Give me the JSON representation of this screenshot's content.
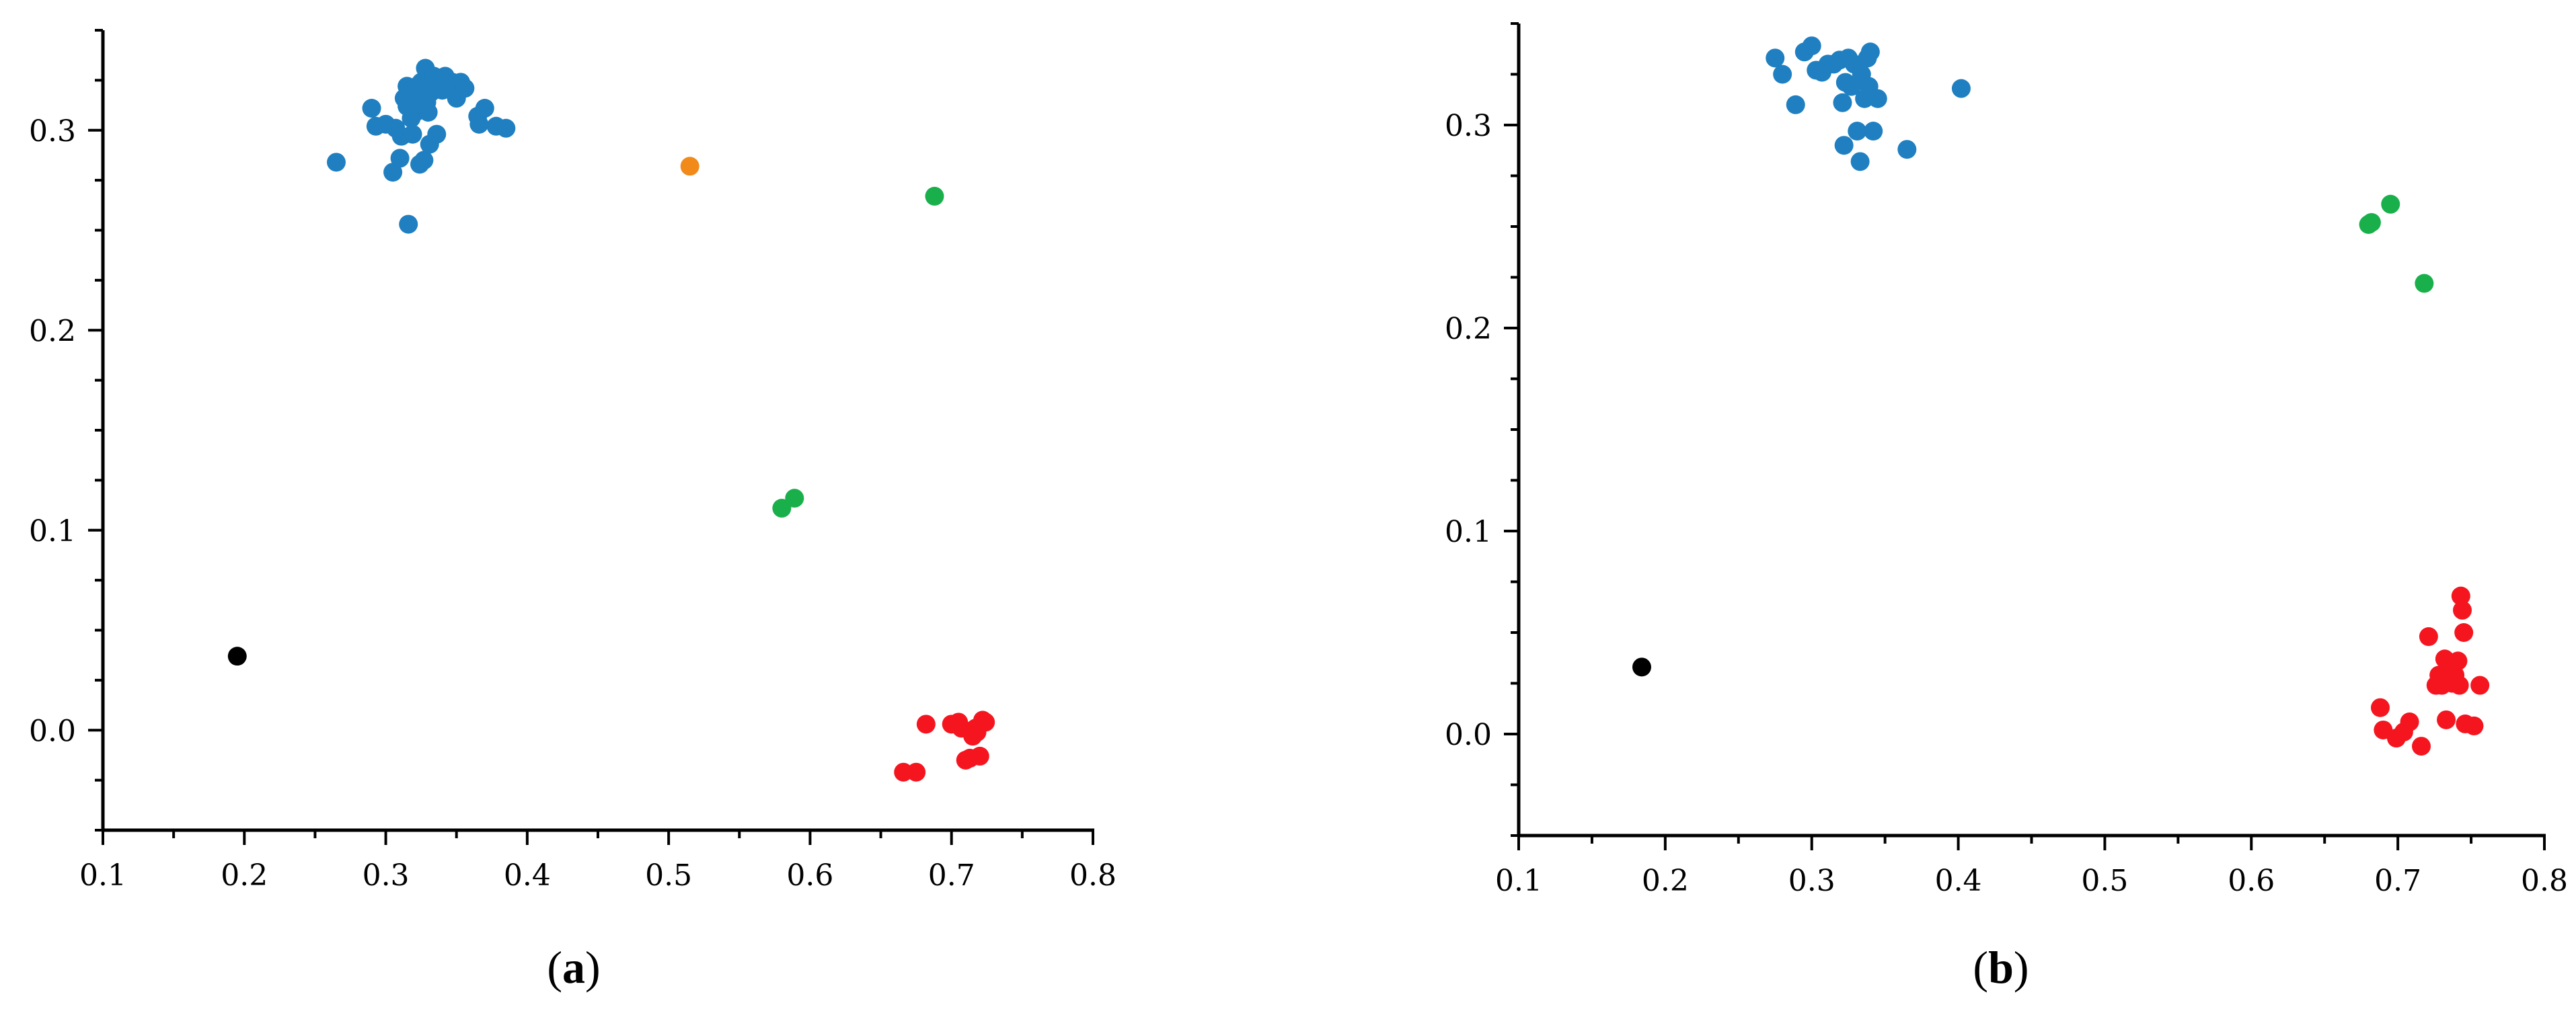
{
  "colors": {
    "blue": "#1f7fc0",
    "orange": "#f28a1a",
    "green": "#19b04b",
    "red": "#f5151f",
    "black": "#000000"
  },
  "chart_data": [
    {
      "type": "scatter",
      "panel_label": "a",
      "xlim": [
        0.1,
        0.8
      ],
      "ylim": [
        -0.05,
        0.35
      ],
      "xticks": [
        0.1,
        0.2,
        0.3,
        0.4,
        0.5,
        0.6,
        0.7,
        0.8
      ],
      "xtick_labels": [
        "0.1",
        "0.2",
        "0.3",
        "0.4",
        "0.5",
        "0.6",
        "0.7",
        "0.8"
      ],
      "yticks": [
        0.0,
        0.1,
        0.2,
        0.3
      ],
      "ytick_labels": [
        "0.0",
        "0.1",
        "0.2",
        "0.3"
      ],
      "grid": false,
      "series": [
        {
          "color": "blue",
          "points": [
            [
              0.265,
              0.284
            ],
            [
              0.29,
              0.311
            ],
            [
              0.293,
              0.302
            ],
            [
              0.3,
              0.303
            ],
            [
              0.305,
              0.279
            ],
            [
              0.307,
              0.301
            ],
            [
              0.31,
              0.286
            ],
            [
              0.311,
              0.297
            ],
            [
              0.313,
              0.316
            ],
            [
              0.315,
              0.312
            ],
            [
              0.316,
              0.253
            ],
            [
              0.318,
              0.306
            ],
            [
              0.32,
              0.32
            ],
            [
              0.321,
              0.309
            ],
            [
              0.323,
              0.316
            ],
            [
              0.324,
              0.283
            ],
            [
              0.325,
              0.324
            ],
            [
              0.327,
              0.285
            ],
            [
              0.328,
              0.331
            ],
            [
              0.329,
              0.314
            ],
            [
              0.33,
              0.309
            ],
            [
              0.331,
              0.293
            ],
            [
              0.332,
              0.319
            ],
            [
              0.334,
              0.327
            ],
            [
              0.336,
              0.298
            ],
            [
              0.34,
              0.32
            ],
            [
              0.342,
              0.327
            ],
            [
              0.347,
              0.324
            ],
            [
              0.35,
              0.316
            ],
            [
              0.353,
              0.324
            ],
            [
              0.356,
              0.321
            ],
            [
              0.365,
              0.307
            ],
            [
              0.366,
              0.303
            ],
            [
              0.37,
              0.311
            ],
            [
              0.378,
              0.302
            ],
            [
              0.385,
              0.301
            ],
            [
              0.315,
              0.322
            ],
            [
              0.322,
              0.322
            ],
            [
              0.326,
              0.313
            ],
            [
              0.319,
              0.298
            ]
          ]
        },
        {
          "color": "orange",
          "points": [
            [
              0.515,
              0.282
            ]
          ]
        },
        {
          "color": "green",
          "points": [
            [
              0.58,
              0.111
            ],
            [
              0.589,
              0.116
            ],
            [
              0.688,
              0.267
            ]
          ]
        },
        {
          "color": "red",
          "points": [
            [
              0.666,
              -0.021
            ],
            [
              0.675,
              -0.021
            ],
            [
              0.682,
              0.003
            ],
            [
              0.7,
              0.003
            ],
            [
              0.705,
              0.004
            ],
            [
              0.707,
              0.001
            ],
            [
              0.71,
              -0.015
            ],
            [
              0.713,
              -0.014
            ],
            [
              0.715,
              -0.003
            ],
            [
              0.718,
              -0.001
            ],
            [
              0.72,
              -0.013
            ],
            [
              0.722,
              0.005
            ],
            [
              0.724,
              0.004
            ],
            [
              0.717,
              0.001
            ]
          ]
        },
        {
          "color": "black",
          "points": [
            [
              0.195,
              0.037
            ]
          ]
        }
      ]
    },
    {
      "type": "scatter",
      "panel_label": "b",
      "xlim": [
        0.1,
        0.8
      ],
      "ylim": [
        -0.05,
        0.35
      ],
      "xticks": [
        0.1,
        0.2,
        0.3,
        0.4,
        0.5,
        0.6,
        0.7,
        0.8
      ],
      "xtick_labels": [
        "0.1",
        "0.2",
        "0.3",
        "0.4",
        "0.5",
        "0.6",
        "0.7",
        "0.8"
      ],
      "yticks": [
        0.0,
        0.1,
        0.2,
        0.3
      ],
      "ytick_labels": [
        "0.0",
        "0.1",
        "0.2",
        "0.3"
      ],
      "grid": false,
      "series": [
        {
          "color": "blue",
          "points": [
            [
              0.275,
              0.333
            ],
            [
              0.28,
              0.325
            ],
            [
              0.289,
              0.31
            ],
            [
              0.295,
              0.336
            ],
            [
              0.3,
              0.339
            ],
            [
              0.303,
              0.327
            ],
            [
              0.307,
              0.326
            ],
            [
              0.311,
              0.33
            ],
            [
              0.315,
              0.33
            ],
            [
              0.319,
              0.332
            ],
            [
              0.321,
              0.311
            ],
            [
              0.322,
              0.29
            ],
            [
              0.323,
              0.321
            ],
            [
              0.325,
              0.333
            ],
            [
              0.327,
              0.319
            ],
            [
              0.329,
              0.33
            ],
            [
              0.331,
              0.297
            ],
            [
              0.333,
              0.282
            ],
            [
              0.334,
              0.325
            ],
            [
              0.336,
              0.313
            ],
            [
              0.338,
              0.333
            ],
            [
              0.339,
              0.319
            ],
            [
              0.34,
              0.336
            ],
            [
              0.342,
              0.297
            ],
            [
              0.345,
              0.313
            ],
            [
              0.365,
              0.288
            ],
            [
              0.402,
              0.318
            ]
          ]
        },
        {
          "color": "green",
          "points": [
            [
              0.68,
              0.251
            ],
            [
              0.682,
              0.252
            ],
            [
              0.695,
              0.261
            ],
            [
              0.718,
              0.222
            ]
          ]
        },
        {
          "color": "red",
          "points": [
            [
              0.688,
              0.013
            ],
            [
              0.69,
              0.002
            ],
            [
              0.699,
              -0.002
            ],
            [
              0.704,
              0.001
            ],
            [
              0.708,
              0.006
            ],
            [
              0.716,
              -0.006
            ],
            [
              0.721,
              0.048
            ],
            [
              0.726,
              0.024
            ],
            [
              0.728,
              0.029
            ],
            [
              0.73,
              0.024
            ],
            [
              0.732,
              0.037
            ],
            [
              0.733,
              0.007
            ],
            [
              0.735,
              0.031
            ],
            [
              0.737,
              0.025
            ],
            [
              0.739,
              0.029
            ],
            [
              0.741,
              0.036
            ],
            [
              0.742,
              0.024
            ],
            [
              0.743,
              0.068
            ],
            [
              0.744,
              0.061
            ],
            [
              0.745,
              0.05
            ],
            [
              0.746,
              0.005
            ],
            [
              0.752,
              0.004
            ],
            [
              0.756,
              0.024
            ]
          ]
        },
        {
          "color": "black",
          "points": [
            [
              0.184,
              0.033
            ]
          ]
        }
      ]
    }
  ]
}
